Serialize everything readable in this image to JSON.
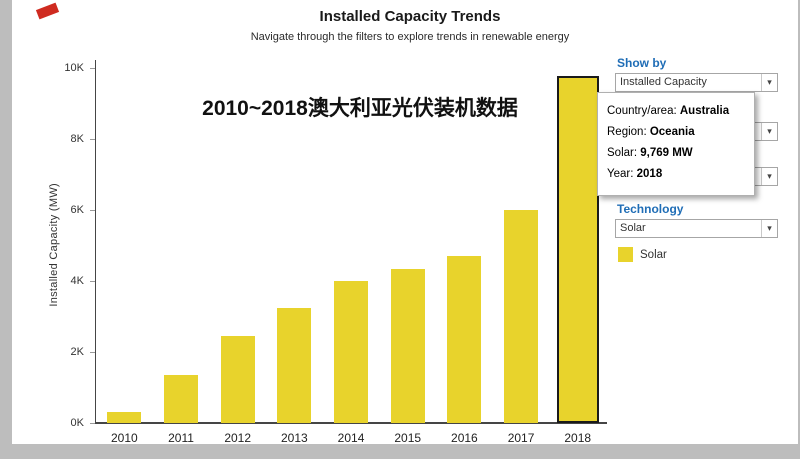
{
  "header": {
    "title": "Installed Capacity Trends",
    "subtitle": "Navigate through the filters to explore trends in renewable energy"
  },
  "chart_data": {
    "type": "bar",
    "title": "Installed Capacity Trends",
    "categories": [
      "2010",
      "2011",
      "2012",
      "2013",
      "2014",
      "2015",
      "2016",
      "2017",
      "2018"
    ],
    "values": [
      300,
      1350,
      2450,
      3250,
      4000,
      4350,
      4700,
      6000,
      9769
    ],
    "ylabel": "Installed Capacity (MW)",
    "xlabel": "",
    "ylim": [
      0,
      10000
    ],
    "yticks": [
      {
        "value": 0,
        "label": "0K"
      },
      {
        "value": 2000,
        "label": "2K"
      },
      {
        "value": 4000,
        "label": "4K"
      },
      {
        "value": 6000,
        "label": "6K"
      },
      {
        "value": 8000,
        "label": "8K"
      },
      {
        "value": 10000,
        "label": "10K"
      }
    ],
    "bar_color": "#e8d32c",
    "highlighted_category": "2018",
    "highlight_border_color": "#1a1a1a",
    "annotation": "2010~2018澳大利亚光伏装机数据",
    "grid": false,
    "legend_position": "right"
  },
  "filters": {
    "show_by_label": "Show by",
    "show_by_value": "Installed Capacity",
    "technology_label": "Technology",
    "technology_value": "Solar",
    "label_color": "#1f6db6"
  },
  "tooltip": {
    "rows": [
      {
        "label": "Country/area:",
        "value": "Australia"
      },
      {
        "label": "Region:",
        "value": "Oceania"
      },
      {
        "label": "Solar:",
        "value": "9,769 MW"
      },
      {
        "label": "Year:",
        "value": "2018"
      }
    ]
  },
  "legend": {
    "label": "Solar",
    "swatch_color": "#e8d32c"
  }
}
